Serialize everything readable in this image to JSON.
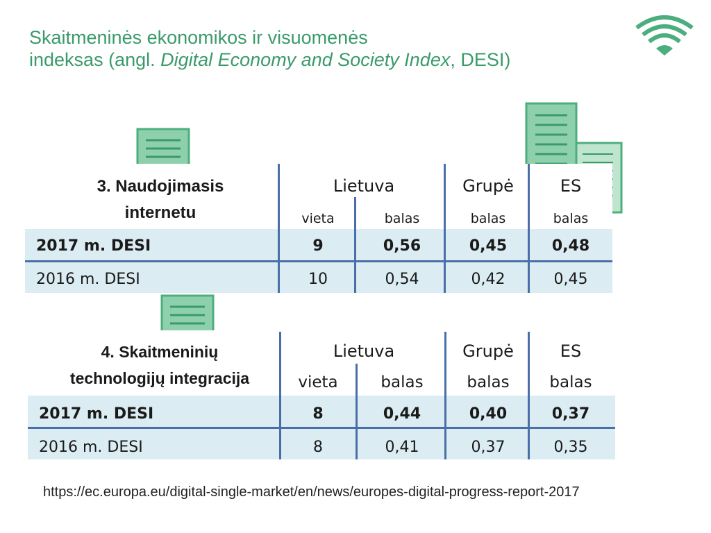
{
  "title": {
    "line1": "Skaitmeninės ekonomikos ir visuomenės",
    "line2_prefix": "indeksas (angl. ",
    "line2_italic": "Digital Economy and Society Index",
    "line2_suffix": ", DESI)"
  },
  "colors": {
    "accent": "#3a9a6a",
    "table_line": "#4a6fa8",
    "row_highlight": "#dbecf2"
  },
  "tables": [
    {
      "section_line1": "3. Naudojimasis",
      "section_line2": "internetu",
      "col_lietuva": "Lietuva",
      "col_grupe": "Grupė",
      "col_es": "ES",
      "sub_vieta": "vieta",
      "sub_balas": "balas",
      "rows": [
        {
          "label": "2017 m. DESI",
          "vieta": "9",
          "lt_balas": "0,56",
          "grupe": "0,45",
          "es": "0,48"
        },
        {
          "label": "2016 m. DESI",
          "vieta": "10",
          "lt_balas": "0,54",
          "grupe": "0,42",
          "es": "0,45"
        }
      ]
    },
    {
      "section_line1": "4. Skaitmeninių",
      "section_line2": "technologijų integracija",
      "col_lietuva": "Lietuva",
      "col_grupe": "Grupė",
      "col_es": "ES",
      "sub_vieta": "vieta",
      "sub_balas": "balas",
      "rows": [
        {
          "label": "2017 m. DESI",
          "vieta": "8",
          "lt_balas": "0,44",
          "grupe": "0,40",
          "es": "0,37"
        },
        {
          "label": "2016 m. DESI",
          "vieta": "8",
          "lt_balas": "0,41",
          "grupe": "0,37",
          "es": "0,35"
        }
      ]
    }
  ],
  "source_url": "https://ec.europa.eu/digital-single-market/en/news/europes-digital-progress-report-2017"
}
